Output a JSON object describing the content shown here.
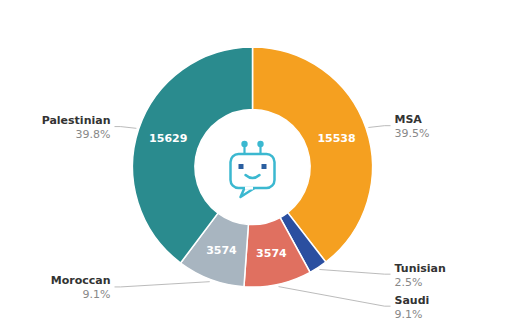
{
  "chart_data": {
    "type": "donut",
    "categories": [
      "MSA",
      "Tunisian",
      "Saudi",
      "Moroccan",
      "Palestinian"
    ],
    "values": [
      15538,
      983,
      3574,
      3574,
      15629
    ],
    "value_labels": [
      "15538",
      null,
      "3574",
      "3574",
      "15629"
    ],
    "percentages": [
      {
        "value": 39.5,
        "label": "39.5%"
      },
      {
        "value": 2.5,
        "label": "2.5%"
      },
      {
        "value": 9.1,
        "label": "9.1%"
      },
      {
        "value": 9.1,
        "label": "9.1%"
      },
      {
        "value": 39.8,
        "label": "39.8%"
      }
    ],
    "colors": [
      "#F5A020",
      "#2B4FA0",
      "#E07060",
      "#A8B5C0",
      "#2A8B8E"
    ]
  }
}
